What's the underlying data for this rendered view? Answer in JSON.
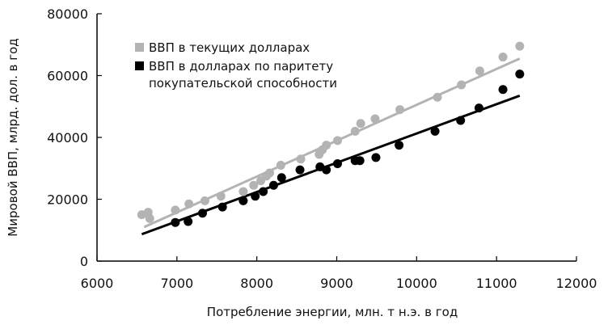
{
  "chart_data": {
    "type": "scatter",
    "xlabel": "Потребление энергии, млн. т н.э. в год",
    "ylabel": "Мировой ВВП, млрд. дол. в год",
    "xlim": [
      6000,
      12000
    ],
    "ylim": [
      0,
      80000
    ],
    "x_ticks": [
      "6000",
      "7000",
      "8000",
      "9000",
      "10000",
      "11000",
      "12000"
    ],
    "y_ticks": [
      "0",
      "20000",
      "40000",
      "60000",
      "80000"
    ],
    "grid": false,
    "legend_position": "top-left",
    "series": [
      {
        "name": "ВВП в текущих долларах",
        "color": "#b3b3b3",
        "points": [
          [
            6560,
            15000
          ],
          [
            6640,
            15800
          ],
          [
            6660,
            13800
          ],
          [
            6980,
            16500
          ],
          [
            7150,
            18500
          ],
          [
            7350,
            19500
          ],
          [
            7550,
            21000
          ],
          [
            7830,
            22500
          ],
          [
            7960,
            24500
          ],
          [
            8050,
            26000
          ],
          [
            8120,
            27500
          ],
          [
            8160,
            28500
          ],
          [
            8300,
            31000
          ],
          [
            8550,
            33000
          ],
          [
            8780,
            34500
          ],
          [
            8820,
            36000
          ],
          [
            8870,
            37500
          ],
          [
            9010,
            39000
          ],
          [
            9230,
            42000
          ],
          [
            9300,
            44500
          ],
          [
            9480,
            46000
          ],
          [
            9790,
            49000
          ],
          [
            10260,
            53000
          ],
          [
            10560,
            57000
          ],
          [
            10790,
            61500
          ],
          [
            11080,
            66000
          ],
          [
            11290,
            69500
          ]
        ],
        "trend": [
          [
            6590,
            11000
          ],
          [
            11290,
            65500
          ]
        ]
      },
      {
        "name": "ВВП в долларах по паритету покупательской способности",
        "color": "#000000",
        "points": [
          [
            6980,
            12500
          ],
          [
            7140,
            12800
          ],
          [
            7320,
            15500
          ],
          [
            7570,
            17500
          ],
          [
            7830,
            19500
          ],
          [
            7980,
            21000
          ],
          [
            8080,
            22500
          ],
          [
            8210,
            24500
          ],
          [
            8310,
            27000
          ],
          [
            8540,
            29500
          ],
          [
            8790,
            30500
          ],
          [
            8870,
            29500
          ],
          [
            9010,
            31500
          ],
          [
            9230,
            32500
          ],
          [
            9290,
            32500
          ],
          [
            9490,
            33500
          ],
          [
            9780,
            37500
          ],
          [
            10230,
            42000
          ],
          [
            10550,
            45500
          ],
          [
            10780,
            49500
          ],
          [
            11080,
            55500
          ],
          [
            11290,
            60500
          ]
        ],
        "trend": [
          [
            6560,
            8700
          ],
          [
            11290,
            53500
          ]
        ]
      }
    ]
  }
}
